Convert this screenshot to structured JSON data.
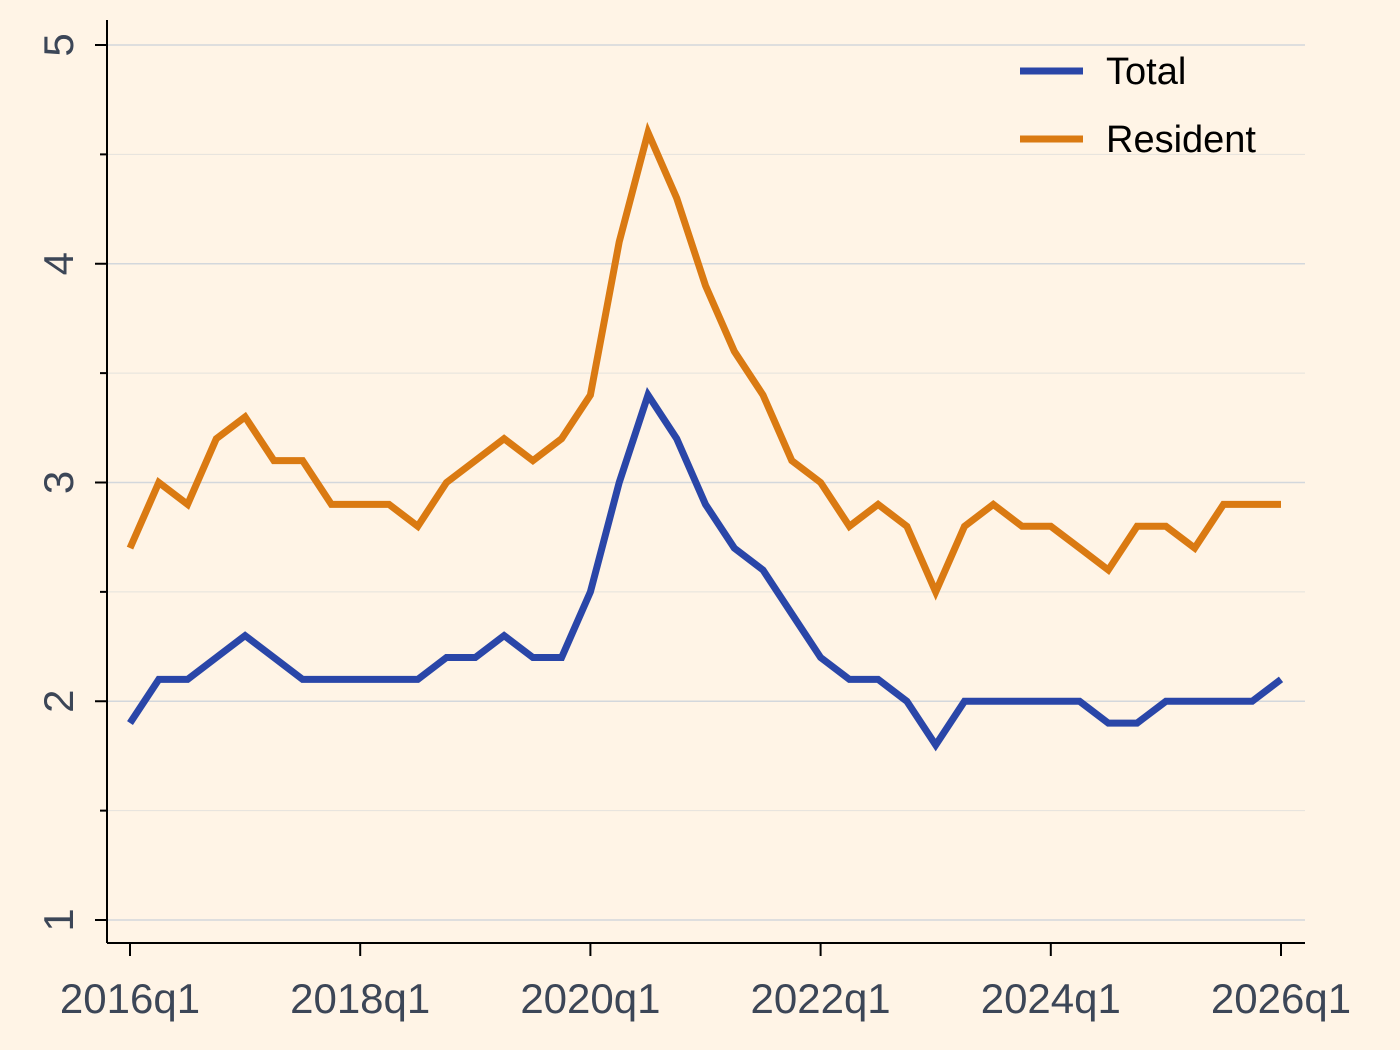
{
  "chart_data": {
    "type": "line",
    "title": "",
    "xlabel": "",
    "ylabel": "",
    "x": [
      "2016q1",
      "2016q2",
      "2016q3",
      "2016q4",
      "2017q1",
      "2017q2",
      "2017q3",
      "2017q4",
      "2018q1",
      "2018q2",
      "2018q3",
      "2018q4",
      "2019q1",
      "2019q2",
      "2019q3",
      "2019q4",
      "2020q1",
      "2020q2",
      "2020q3",
      "2020q4",
      "2021q1",
      "2021q2",
      "2021q3",
      "2021q4",
      "2022q1",
      "2022q2",
      "2022q3",
      "2022q4",
      "2023q1",
      "2023q2",
      "2023q3",
      "2023q4",
      "2024q1",
      "2024q2",
      "2024q3",
      "2024q4",
      "2025q1",
      "2025q2",
      "2025q3",
      "2025q4",
      "2026q1"
    ],
    "x_tick_labels": [
      "2016q1",
      "2018q1",
      "2020q1",
      "2022q1",
      "2024q1",
      "2026q1"
    ],
    "y_tick_labels": [
      "1",
      "2",
      "3",
      "4",
      "5"
    ],
    "ylim": [
      1,
      5
    ],
    "grid": true,
    "legend_position": "top-right",
    "series": [
      {
        "name": "Total",
        "color": "#2a46a8",
        "values": [
          1.9,
          2.1,
          2.1,
          2.2,
          2.3,
          2.2,
          2.1,
          2.1,
          2.1,
          2.1,
          2.1,
          2.2,
          2.2,
          2.3,
          2.2,
          2.2,
          2.5,
          3.0,
          3.4,
          3.2,
          2.9,
          2.7,
          2.6,
          2.4,
          2.2,
          2.1,
          2.1,
          2.0,
          1.8,
          2.0,
          2.0,
          2.0,
          2.0,
          2.0,
          1.9,
          1.9,
          2.0,
          2.0,
          2.0,
          2.0,
          2.1
        ]
      },
      {
        "name": "Resident",
        "color": "#da7a12",
        "values": [
          2.7,
          3.0,
          2.9,
          3.2,
          3.3,
          3.1,
          3.1,
          2.9,
          2.9,
          2.9,
          2.8,
          3.0,
          3.1,
          3.2,
          3.1,
          3.2,
          3.4,
          4.1,
          4.6,
          4.3,
          3.9,
          3.6,
          3.4,
          3.1,
          3.0,
          2.8,
          2.9,
          2.8,
          2.5,
          2.8,
          2.9,
          2.8,
          2.8,
          2.7,
          2.6,
          2.8,
          2.8,
          2.7,
          2.9,
          2.9,
          2.9
        ]
      }
    ]
  }
}
